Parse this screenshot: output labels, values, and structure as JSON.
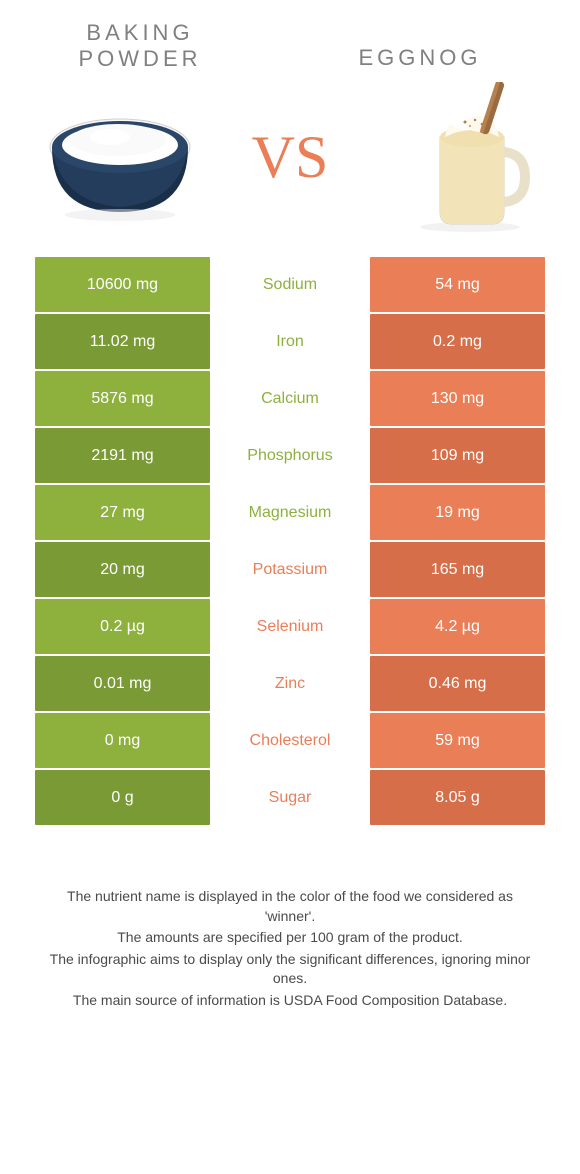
{
  "colors": {
    "left": "#8eb13e",
    "right": "#ea7e57",
    "left_dark": "#7a9a35",
    "right_dark": "#d66e49"
  },
  "food_left": {
    "title": "Baking Powder"
  },
  "food_right": {
    "title": "Eggnog"
  },
  "vs": "VS",
  "rows": [
    {
      "left": "10600 mg",
      "label": "Sodium",
      "right": "54 mg",
      "winner": "left"
    },
    {
      "left": "11.02 mg",
      "label": "Iron",
      "right": "0.2 mg",
      "winner": "left"
    },
    {
      "left": "5876 mg",
      "label": "Calcium",
      "right": "130 mg",
      "winner": "left"
    },
    {
      "left": "2191 mg",
      "label": "Phosphorus",
      "right": "109 mg",
      "winner": "left"
    },
    {
      "left": "27 mg",
      "label": "Magnesium",
      "right": "19 mg",
      "winner": "left"
    },
    {
      "left": "20 mg",
      "label": "Potassium",
      "right": "165 mg",
      "winner": "right"
    },
    {
      "left": "0.2 µg",
      "label": "Selenium",
      "right": "4.2 µg",
      "winner": "right"
    },
    {
      "left": "0.01 mg",
      "label": "Zinc",
      "right": "0.46 mg",
      "winner": "right"
    },
    {
      "left": "0 mg",
      "label": "Cholesterol",
      "right": "59 mg",
      "winner": "right"
    },
    {
      "left": "0 g",
      "label": "Sugar",
      "right": "8.05 g",
      "winner": "right"
    }
  ],
  "footer": [
    "The nutrient name is displayed in the color of the food we considered as 'winner'.",
    "The amounts are specified per 100 gram of the product.",
    "The infographic aims to display only the significant differences, ignoring minor ones.",
    "The main source of information is USDA Food Composition Database."
  ]
}
